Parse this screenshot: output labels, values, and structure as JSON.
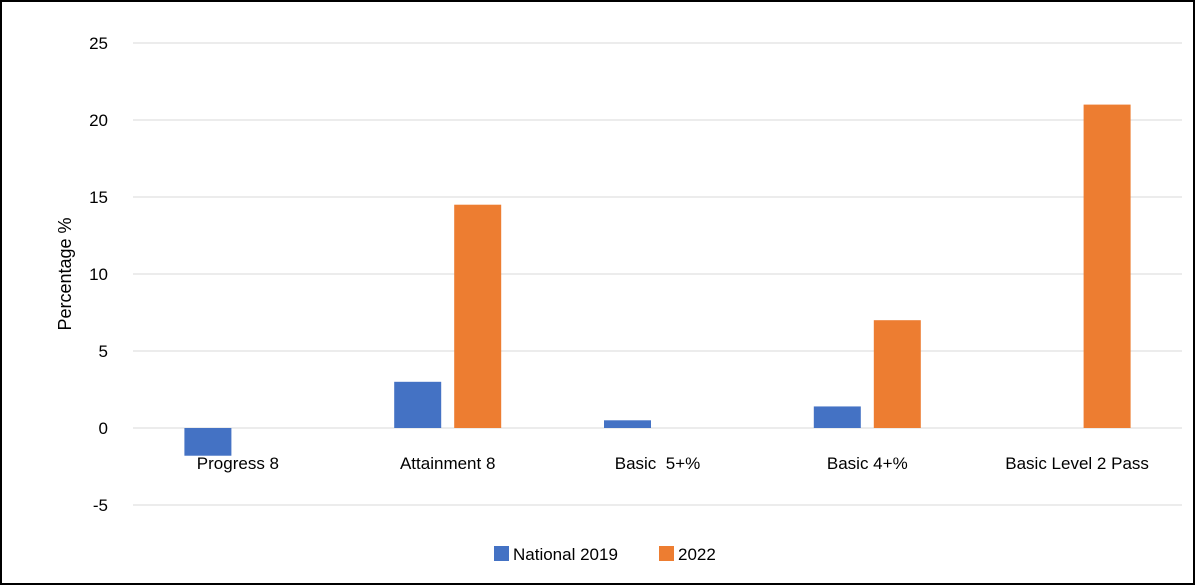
{
  "chart_data": {
    "type": "bar",
    "categories": [
      "Progress 8",
      "Attainment 8",
      "Basic  5+%",
      "Basic 4+%",
      "Basic Level 2 Pass"
    ],
    "series": [
      {
        "name": "National 2019",
        "color": "#4472c4",
        "values": [
          -1.8,
          3.0,
          0.5,
          1.4,
          0
        ]
      },
      {
        "name": "2022",
        "color": "#ed7d31",
        "values": [
          0,
          14.5,
          0,
          7.0,
          21.0
        ]
      }
    ],
    "title": "",
    "xlabel": "",
    "ylabel": "Percentage %",
    "ylim": [
      -5,
      25
    ],
    "yticks": [
      25,
      20,
      15,
      10,
      5,
      0,
      -5
    ],
    "grid": true,
    "legend": "bottom"
  }
}
